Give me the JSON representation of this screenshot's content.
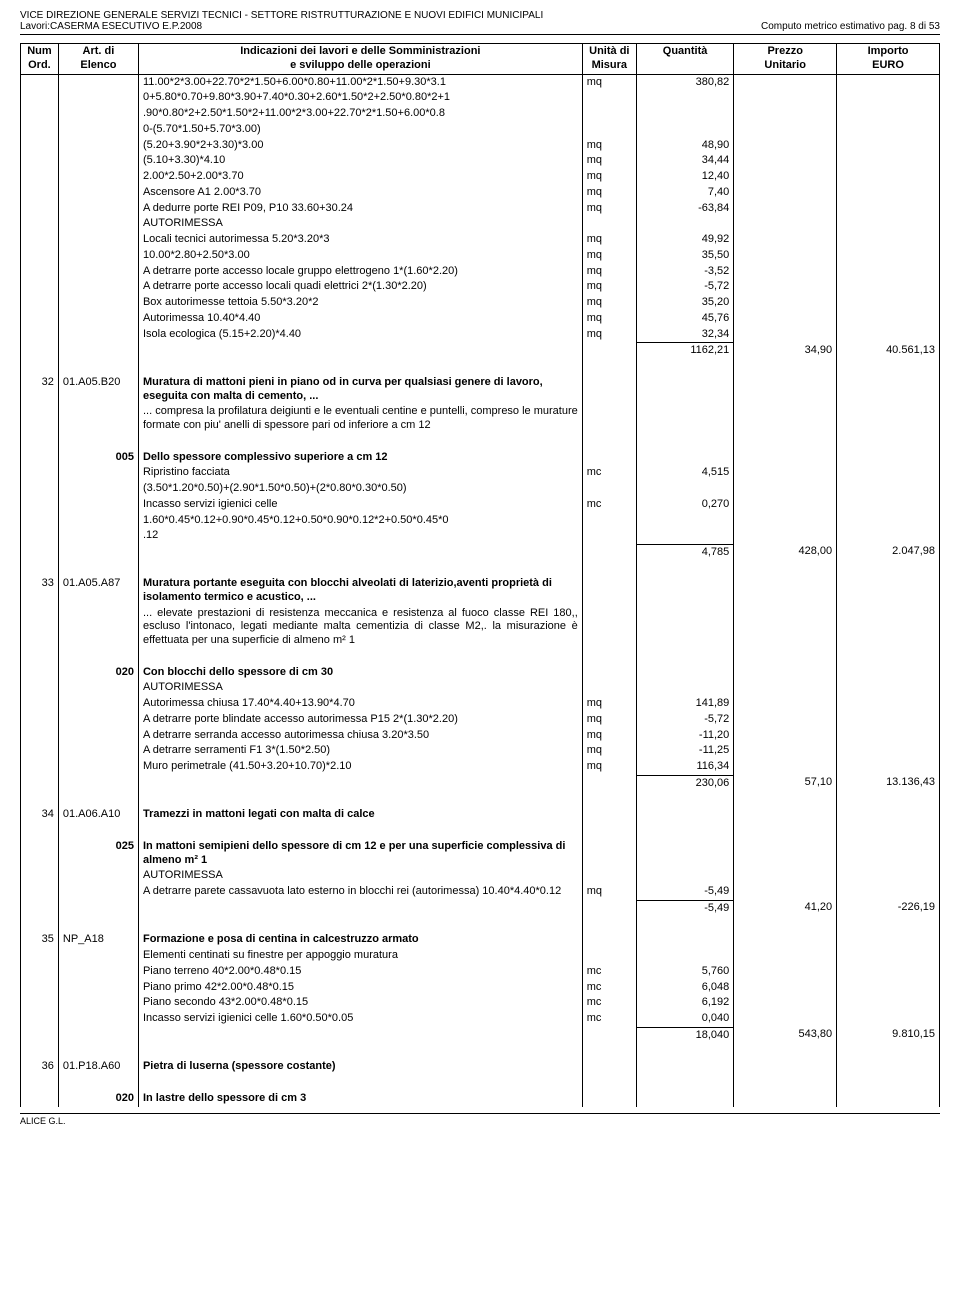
{
  "header": {
    "line1": "VICE DIREZIONE GENERALE SERVIZI TECNICI - SETTORE RISTRUTTURAZIONE E NUOVI EDIFICI MUNICIPALI",
    "line2": "Lavori:CASERMA ESECUTIVO E.P.2008",
    "page": "Computo metrico estimativo pag. 8 di 53"
  },
  "cols": {
    "num1": "Num",
    "num2": "Ord.",
    "art1": "Art. di",
    "art2": "Elenco",
    "desc1": "Indicazioni dei lavori e delle Somministrazioni",
    "desc2": "e sviluppo delle operazioni",
    "um1": "Unità di",
    "um2": "Misura",
    "qty": "Quantità",
    "pz1": "Prezzo",
    "pz2": "Unitario",
    "imp1": "Importo",
    "imp2": "EURO"
  },
  "block1": {
    "lines": [
      {
        "d": "11.00*2*3.00+22.70*2*1.50+6.00*0.80+11.00*2*1.50+9.30*3.1",
        "u": "mq",
        "q": "380,82"
      },
      {
        "d": "0+5.80*0.70+9.80*3.90+7.40*0.30+2.60*1.50*2+2.50*0.80*2+1"
      },
      {
        "d": ".90*0.80*2+2.50*1.50*2+11.00*2*3.00+22.70*2*1.50+6.00*0.8"
      },
      {
        "d": "0-(5.70*1.50+5.70*3.00)"
      },
      {
        "d": "(5.20+3.90*2+3.30)*3.00",
        "u": "mq",
        "q": "48,90"
      },
      {
        "d": "(5.10+3.30)*4.10",
        "u": "mq",
        "q": "34,44"
      },
      {
        "d": "2.00*2.50+2.00*3.70",
        "u": "mq",
        "q": "12,40"
      },
      {
        "d": "Ascensore A1 2.00*3.70",
        "u": "mq",
        "q": "7,40"
      },
      {
        "d": "A dedurre porte REI P09, P10 33.60+30.24",
        "u": "mq",
        "q": "-63,84"
      },
      {
        "d": "AUTORIMESSA"
      },
      {
        "d": "Locali tecnici autorimessa 5.20*3.20*3",
        "u": "mq",
        "q": "49,92"
      },
      {
        "d": "10.00*2.80+2.50*3.00",
        "u": "mq",
        "q": "35,50"
      },
      {
        "d": "A detrarre porte accesso locale gruppo elettrogeno 1*(1.60*2.20)",
        "u": "mq",
        "q": "-3,52",
        "j": true
      },
      {
        "d": "A detrarre porte accesso locali quadi elettrici 2*(1.30*2.20)",
        "u": "mq",
        "q": "-5,72"
      },
      {
        "d": "Box autorimesse tettoia 5.50*3.20*2",
        "u": "mq",
        "q": "35,20"
      },
      {
        "d": "Autorimessa 10.40*4.40",
        "u": "mq",
        "q": "45,76"
      },
      {
        "d": "Isola ecologica (5.15+2.20)*4.40",
        "u": "mq",
        "q": "32,34"
      }
    ],
    "sum_q": "1162,21",
    "sum_p": "34,90",
    "sum_i": "40.561,13"
  },
  "item32": {
    "num": "32",
    "art": "01.A05.B20",
    "title": "Muratura di mattoni pieni in piano od in curva per qualsiasi genere di lavoro, eseguita con malta di cemento, ...",
    "desc": "... compresa la profilatura deigiunti e le eventuali centine e puntelli, compreso le murature formate con piu' anelli di spessore pari od inferiore a cm 12",
    "sub_num": "005",
    "sub_title": "Dello spessore complessivo superiore a cm 12",
    "lines": [
      {
        "d": "Ripristino                                                                            facciata",
        "u": "mc",
        "q": "4,515"
      },
      {
        "d": "(3.50*1.20*0.50)+(2.90*1.50*0.50)+(2*0.80*0.30*0.50)"
      },
      {
        "d": "Incasso               servizi               igienici                 celle",
        "u": "mc",
        "q": "0,270"
      },
      {
        "d": "1.60*0.45*0.12+0.90*0.45*0.12+0.50*0.90*0.12*2+0.50*0.45*0"
      },
      {
        "d": ".12"
      }
    ],
    "sum_q": "4,785",
    "sum_p": "428,00",
    "sum_i": "2.047,98"
  },
  "item33": {
    "num": "33",
    "art": "01.A05.A87",
    "title": "Muratura portante eseguita con blocchi alveolati di laterizio,aventi proprietà di isolamento termico e acustico, ...",
    "desc": "... elevate prestazioni di resistenza meccanica e resistenza al fuoco classe REI 180,, escluso l'intonaco, legati mediante malta cementizia di classe M2,. la misurazione è effettuata per una superficie di almeno m² 1",
    "sub_num": "020",
    "sub_title": "Con blocchi dello spessore di cm 30",
    "lines": [
      {
        "d": "AUTORIMESSA"
      },
      {
        "d": "Autorimessa chiusa 17.40*4.40+13.90*4.70",
        "u": "mq",
        "q": "141,89"
      },
      {
        "d": "A detrarre porte blindate accesso autorimessa P15 2*(1.30*2.20)",
        "u": "mq",
        "q": "-5,72",
        "j": true
      },
      {
        "d": "A detrarre serranda accesso autorimessa  chiusa 3.20*3.50",
        "u": "mq",
        "q": "-11,20"
      },
      {
        "d": "A detrarre serramenti F1 3*(1.50*2.50)",
        "u": "mq",
        "q": "-11,25"
      },
      {
        "d": "Muro perimetrale (41.50+3.20+10.70)*2.10",
        "u": "mq",
        "q": "116,34"
      }
    ],
    "sum_q": "230,06",
    "sum_p": "57,10",
    "sum_i": "13.136,43"
  },
  "item34": {
    "num": "34",
    "art": "01.A06.A10",
    "title": "Tramezzi in mattoni legati con malta di calce",
    "sub_num": "025",
    "sub_title": "In mattoni semipieni dello spessore di cm 12 e per una superficie complessiva di almeno m² 1",
    "lines": [
      {
        "d": "AUTORIMESSA"
      },
      {
        "d": "A detrarre parete cassavuota lato esterno in blocchi rei (autorimessa) 10.40*4.40*0.12",
        "u": "mq",
        "q": "-5,49",
        "j": true
      }
    ],
    "sum_q": "-5,49",
    "sum_p": "41,20",
    "sum_i": "-226,19"
  },
  "item35": {
    "num": "35",
    "art": "NP_A18",
    "title": "Formazione e posa di centina in calcestruzzo armato",
    "lines": [
      {
        "d": "Elementi centinati su finestre per appoggio muratura"
      },
      {
        "d": "Piano terreno 40*2.00*0.48*0.15",
        "u": "mc",
        "q": "5,760"
      },
      {
        "d": "Piano primo 42*2.00*0.48*0.15",
        "u": "mc",
        "q": "6,048"
      },
      {
        "d": "Piano secondo 43*2.00*0.48*0.15",
        "u": "mc",
        "q": "6,192"
      },
      {
        "d": "Incasso servizi igienici celle 1.60*0.50*0.05",
        "u": "mc",
        "q": "0,040"
      }
    ],
    "sum_q": "18,040",
    "sum_p": "543,80",
    "sum_i": "9.810,15"
  },
  "item36": {
    "num": "36",
    "art": "01.P18.A60",
    "title": "Pietra di luserna (spessore costante)",
    "sub_num": "020",
    "sub_title": "In lastre dello spessore di cm  3"
  },
  "footer": "ALICE G.L."
}
